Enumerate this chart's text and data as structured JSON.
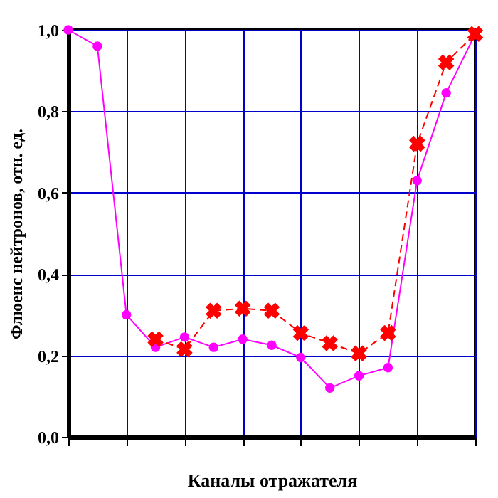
{
  "chart_data": {
    "type": "line",
    "xlabel": "Каналы отражателя",
    "ylabel": "Флюенс нейтронов, отн. ед.",
    "categories": [
      null,
      null,
      null,
      null,
      null,
      null,
      null,
      null,
      null,
      null,
      null,
      null,
      null,
      null,
      null
    ],
    "series": [
      {
        "color": "#ff00ff",
        "marker": "circle",
        "line_style": "solid",
        "values": [
          1.0,
          0.96,
          0.3,
          0.22,
          0.245,
          0.22,
          0.24,
          0.225,
          0.195,
          0.12,
          0.15,
          0.17,
          0.63,
          0.845,
          0.99
        ]
      },
      {
        "color": "#ff0000",
        "marker": "cross",
        "line_style": "dashed",
        "values": [
          null,
          null,
          null,
          0.24,
          0.215,
          0.31,
          0.315,
          0.31,
          0.255,
          0.23,
          0.205,
          0.255,
          0.72,
          0.92,
          0.99
        ]
      }
    ],
    "ylim": [
      0,
      1.0
    ],
    "yticks": [
      {
        "value": 0,
        "label": "0,0"
      },
      {
        "value": 0.2,
        "label": "0,2"
      },
      {
        "value": 0.4,
        "label": "0,4"
      },
      {
        "value": 0.6,
        "label": "0,6"
      },
      {
        "value": 0.8,
        "label": "0,8"
      },
      {
        "value": 1.0,
        "label": "1,0"
      }
    ],
    "grid": true,
    "tick_labels": "y"
  }
}
